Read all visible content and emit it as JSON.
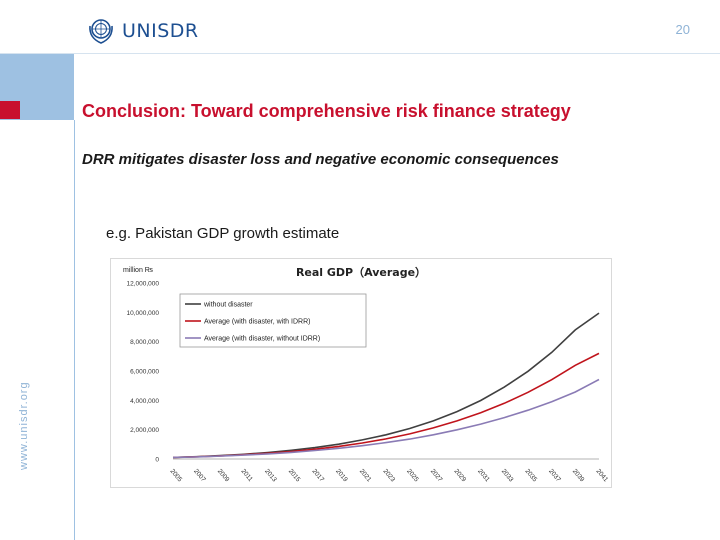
{
  "header": {
    "logo_text": "UNISDR",
    "page_number": "20",
    "side_url": "www.unisdr.org"
  },
  "slide": {
    "title": "Conclusion: Toward comprehensive risk finance strategy",
    "subtitle": "DRR mitigates disaster loss and negative economic consequences",
    "example": "e.g. Pakistan GDP growth estimate"
  },
  "chart_data": {
    "type": "line",
    "title": "Real GDP（Average）",
    "unit_label": "million ₨",
    "x": [
      2005,
      2007,
      2009,
      2011,
      2013,
      2015,
      2017,
      2019,
      2021,
      2023,
      2025,
      2027,
      2029,
      2031,
      2033,
      2035,
      2037,
      2039,
      2041
    ],
    "ylim": [
      0,
      12000000
    ],
    "y_ticks": [
      0,
      2000000,
      4000000,
      6000000,
      8000000,
      10000000,
      12000000
    ],
    "y_tick_labels": [
      "0",
      "2,000,000",
      "4,000,000",
      "6,000,000",
      "8,000,000",
      "10,000,000",
      "12,000,000"
    ],
    "legend_position": "top-left",
    "grid": false,
    "series": [
      {
        "name": "without disaster",
        "color": "#404040",
        "values": [
          110000,
          160000,
          230000,
          320000,
          440000,
          590000,
          780000,
          1010000,
          1300000,
          1650000,
          2080000,
          2600000,
          3230000,
          3990000,
          4900000,
          5980000,
          7270000,
          8800000,
          9950000
        ]
      },
      {
        "name": "Average (with disaster, with IDRR)",
        "color": "#c0141c",
        "values": [
          110000,
          150000,
          210000,
          290000,
          390000,
          510000,
          670000,
          860000,
          1090000,
          1370000,
          1710000,
          2120000,
          2600000,
          3160000,
          3800000,
          4550000,
          5410000,
          6390000,
          7200000
        ]
      },
      {
        "name": "Average (with disaster, without IDRR)",
        "color": "#8a7bb5",
        "values": [
          110000,
          145000,
          195000,
          265000,
          350000,
          450000,
          580000,
          730000,
          910000,
          1120000,
          1360000,
          1650000,
          1990000,
          2380000,
          2820000,
          3330000,
          3910000,
          4570000,
          5420000
        ]
      }
    ]
  }
}
